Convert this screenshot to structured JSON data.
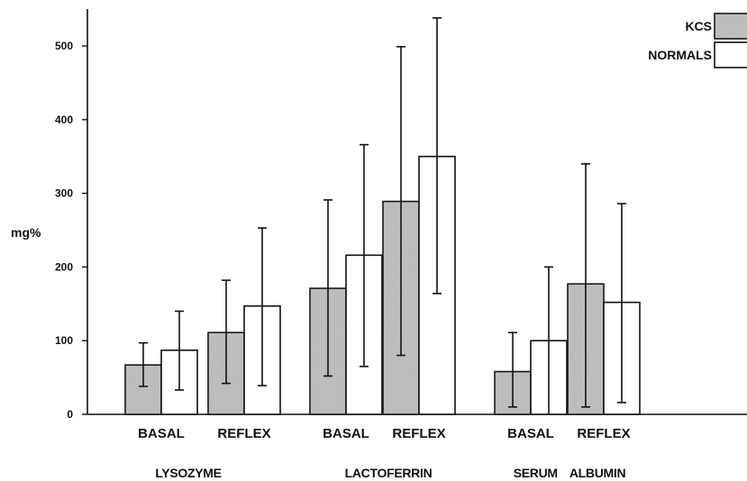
{
  "chart_data": {
    "type": "bar",
    "ylabel": "mg%",
    "ylim": [
      0,
      550
    ],
    "yticks": [
      0,
      100,
      200,
      300,
      400,
      500
    ],
    "grid": false,
    "legend_position": "top-right",
    "groups": [
      {
        "label": "LYSOZYME",
        "subcategories": [
          "BASAL",
          "REFLEX"
        ]
      },
      {
        "label": "LACTOFERRIN",
        "subcategories": [
          "BASAL",
          "REFLEX"
        ]
      },
      {
        "label": "SERUM ALBUMIN",
        "subcategories": [
          "BASAL",
          "REFLEX"
        ]
      }
    ],
    "categories": [
      "LYSOZYME BASAL",
      "LYSOZYME REFLEX",
      "LACTOFERRIN BASAL",
      "LACTOFERRIN REFLEX",
      "SERUM ALBUMIN BASAL",
      "SERUM ALBUMIN REFLEX"
    ],
    "series": [
      {
        "name": "KCS",
        "color": "#bdbdbd",
        "values": [
          67,
          111,
          171,
          289,
          58,
          177
        ],
        "error_low": [
          38,
          42,
          52,
          80,
          10,
          10
        ],
        "error_high": [
          97,
          182,
          291,
          499,
          111,
          340
        ]
      },
      {
        "name": "NORMALS",
        "color": "#ffffff",
        "values": [
          87,
          147,
          216,
          350,
          100,
          152
        ],
        "error_low": [
          33,
          39,
          65,
          164,
          null,
          16
        ],
        "error_high": [
          140,
          253,
          366,
          538,
          200,
          286
        ]
      }
    ]
  },
  "colors": {
    "axis": "#111111",
    "kcs_fill": "#bdbdbd",
    "normals_fill": "#ffffff"
  }
}
